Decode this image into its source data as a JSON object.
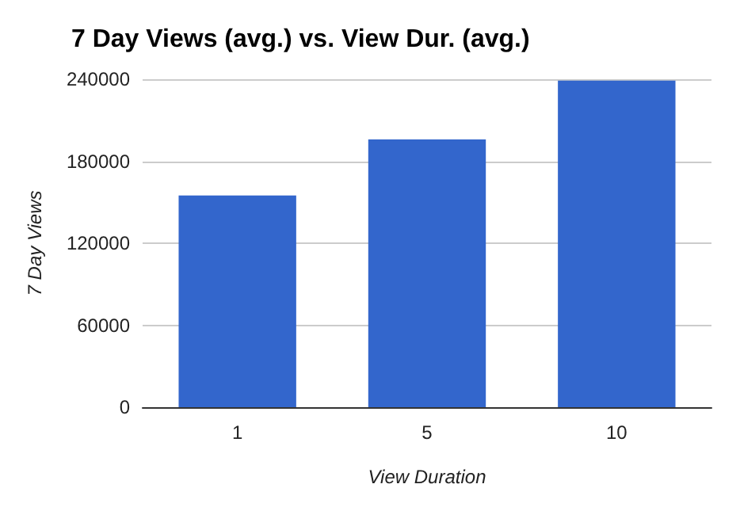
{
  "chart_data": {
    "type": "bar",
    "title": "7 Day Views (avg.) vs. View Dur. (avg.)",
    "xlabel": "View Duration",
    "ylabel": "7 Day Views",
    "categories": [
      "1",
      "5",
      "10"
    ],
    "values": [
      155000,
      196000,
      239000
    ],
    "color": "#3366cc",
    "ylim": [
      0,
      240000
    ],
    "yticks": [
      0,
      60000,
      120000,
      180000,
      240000
    ],
    "grid": "y"
  }
}
